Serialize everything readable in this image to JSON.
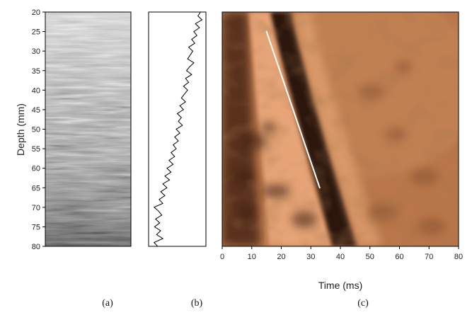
{
  "chart_data": [
    {
      "panel": "(a)",
      "type": "heatmap",
      "ylabel": "Depth (mm)",
      "ylim": [
        20,
        80
      ],
      "y_ticks": [
        20,
        25,
        30,
        35,
        40,
        45,
        50,
        55,
        60,
        65,
        70,
        75,
        80
      ],
      "colormap": "grayscale"
    },
    {
      "panel": "(b)",
      "type": "line",
      "ylim": [
        20,
        80
      ],
      "y": [
        20,
        21,
        22,
        23,
        24,
        25,
        26,
        27,
        28,
        29,
        30,
        31,
        32,
        33,
        34,
        35,
        36,
        37,
        38,
        39,
        40,
        41,
        42,
        43,
        44,
        45,
        46,
        47,
        48,
        49,
        50,
        51,
        52,
        53,
        54,
        55,
        56,
        57,
        58,
        59,
        60,
        61,
        62,
        63,
        64,
        65,
        66,
        67,
        68,
        69,
        70,
        71,
        72,
        73,
        74,
        75,
        76,
        77,
        78,
        79,
        80
      ],
      "x": [
        0.95,
        0.9,
        0.98,
        0.85,
        0.93,
        0.82,
        0.88,
        0.78,
        0.84,
        0.72,
        0.8,
        0.75,
        0.7,
        0.82,
        0.74,
        0.68,
        0.78,
        0.66,
        0.72,
        0.62,
        0.7,
        0.64,
        0.58,
        0.66,
        0.55,
        0.62,
        0.5,
        0.58,
        0.52,
        0.6,
        0.48,
        0.55,
        0.45,
        0.52,
        0.42,
        0.48,
        0.38,
        0.45,
        0.34,
        0.42,
        0.3,
        0.38,
        0.26,
        0.35,
        0.22,
        0.3,
        0.18,
        0.26,
        0.15,
        0.22,
        0.05,
        0.14,
        0.2,
        0.08,
        0.16,
        0.06,
        0.18,
        0.1,
        0.22,
        0.05,
        0.12
      ]
    },
    {
      "panel": "(c)",
      "type": "heatmap",
      "xlabel": "Time (ms)",
      "xlim": [
        0,
        80
      ],
      "ylim": [
        20,
        80
      ],
      "x_ticks": [
        0,
        10,
        20,
        30,
        40,
        50,
        60,
        70,
        80
      ],
      "colormap": "copper",
      "annotation_line": {
        "x": [
          15,
          33
        ],
        "y": [
          25,
          65
        ],
        "color": "#ffffff"
      }
    }
  ],
  "panel_labels": [
    "(a)",
    "(b)",
    "(c)"
  ],
  "colors": {
    "copper_light": "#e8a679",
    "copper_mid": "#b8764a",
    "copper_dark": "#2a1408",
    "axis": "#000000"
  }
}
